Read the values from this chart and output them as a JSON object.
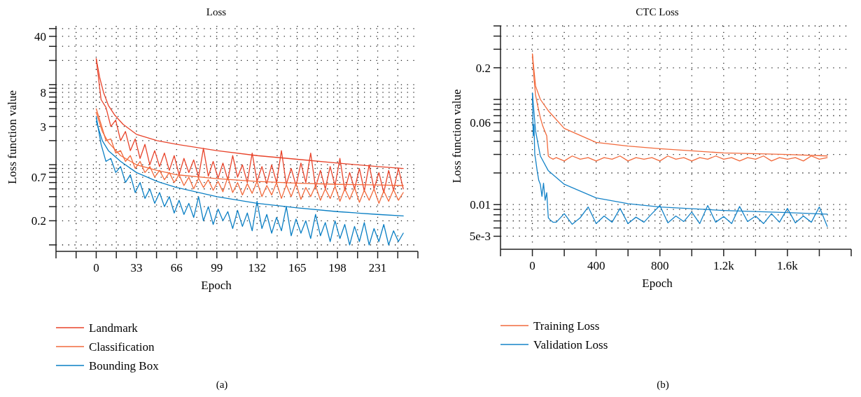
{
  "chart_data": [
    {
      "type": "line",
      "title": "Loss",
      "xlabel": "Epoch",
      "ylabel": "Loss function value",
      "log": "y",
      "grid": true,
      "legend": "bottom",
      "xlim": [
        -33,
        264
      ],
      "xticks": [
        {
          "value": -16.5,
          "label": null
        },
        0,
        {
          "value": 16.5,
          "label": null
        },
        33,
        {
          "value": 49.5,
          "label": null
        },
        66,
        {
          "value": 82.5,
          "label": null
        },
        99,
        {
          "value": 115.5,
          "label": null
        },
        132,
        {
          "value": 148.5,
          "label": null
        },
        165,
        {
          "value": 181.5,
          "label": null
        },
        198,
        {
          "value": 214.5,
          "label": null
        },
        231,
        {
          "value": 247.5,
          "label": null
        }
      ],
      "ylim": [
        0.09,
        54
      ],
      "yticks": [
        {
          "value": 50,
          "label": null
        },
        40,
        {
          "value": 30,
          "label": null
        },
        {
          "value": 20,
          "label": null
        },
        {
          "value": 10,
          "label": null
        },
        {
          "value": 9,
          "label": null
        },
        8,
        {
          "value": 7,
          "label": null
        },
        {
          "value": 6,
          "label": null
        },
        {
          "value": 5,
          "label": null
        },
        {
          "value": 4,
          "label": null
        },
        3,
        {
          "value": 2,
          "label": null
        },
        {
          "value": 1,
          "label": null
        },
        {
          "value": 0.9,
          "label": null
        },
        {
          "value": 0.8,
          "label": null
        },
        0.7,
        {
          "value": 0.6,
          "label": null
        },
        {
          "value": 0.5,
          "label": null
        },
        {
          "value": 0.4,
          "label": null
        },
        {
          "value": 0.3,
          "label": null
        },
        0.2,
        {
          "value": 0.1,
          "label": null
        }
      ],
      "annotations": [
        "(a)"
      ],
      "series": [
        {
          "name": "Landmark",
          "color": "#e8432a",
          "x": [
            0,
            4,
            8,
            12,
            16,
            20,
            24,
            28,
            32,
            36,
            40,
            44,
            48,
            52,
            56,
            60,
            64,
            68,
            72,
            76,
            80,
            84,
            88,
            92,
            96,
            100,
            104,
            108,
            112,
            116,
            120,
            124,
            128,
            132,
            136,
            140,
            144,
            148,
            152,
            156,
            160,
            164,
            168,
            172,
            176,
            180,
            184,
            188,
            192,
            196,
            200,
            204,
            208,
            212,
            216,
            220,
            224,
            228,
            232,
            236,
            240,
            244,
            248,
            252
          ],
          "values": [
            21,
            6.5,
            5.2,
            3.0,
            3.6,
            2.0,
            2.6,
            1.5,
            2.1,
            1.2,
            1.8,
            1.0,
            1.5,
            0.95,
            1.4,
            0.85,
            1.3,
            0.75,
            1.2,
            0.8,
            1.15,
            0.7,
            1.6,
            0.72,
            1.1,
            0.68,
            1.05,
            0.65,
            1.3,
            0.7,
            1.0,
            0.6,
            1.4,
            0.62,
            0.95,
            0.58,
            1.0,
            0.6,
            1.5,
            0.57,
            0.9,
            0.55,
            1.05,
            0.6,
            1.4,
            0.52,
            0.85,
            0.5,
            0.95,
            0.55,
            1.2,
            0.48,
            0.8,
            0.5,
            0.9,
            0.47,
            1.0,
            0.5,
            0.8,
            0.45,
            0.85,
            0.48,
            0.9,
            0.5
          ]
        },
        {
          "name": "Classification",
          "color": "#f26a3c",
          "x": [
            0,
            4,
            8,
            12,
            16,
            20,
            24,
            28,
            32,
            36,
            40,
            44,
            48,
            52,
            56,
            60,
            64,
            68,
            72,
            76,
            80,
            84,
            88,
            92,
            96,
            100,
            104,
            108,
            112,
            116,
            120,
            124,
            128,
            132,
            136,
            140,
            144,
            148,
            152,
            156,
            160,
            164,
            168,
            172,
            176,
            180,
            184,
            188,
            192,
            196,
            200,
            204,
            208,
            212,
            216,
            220,
            224,
            228,
            232,
            236,
            240,
            244,
            248,
            252
          ],
          "values": [
            5,
            3.2,
            2.0,
            2.1,
            1.4,
            1.5,
            1.1,
            1.3,
            0.9,
            1.1,
            0.8,
            0.95,
            0.7,
            0.85,
            0.65,
            0.8,
            0.6,
            0.75,
            0.55,
            0.7,
            0.5,
            0.68,
            0.52,
            0.65,
            0.48,
            0.62,
            0.46,
            0.7,
            0.45,
            0.6,
            0.42,
            0.58,
            0.44,
            0.62,
            0.4,
            0.55,
            0.42,
            0.6,
            0.38,
            0.56,
            0.4,
            0.58,
            0.37,
            0.52,
            0.4,
            0.55,
            0.36,
            0.5,
            0.38,
            0.54,
            0.35,
            0.5,
            0.37,
            0.52,
            0.34,
            0.48,
            0.36,
            0.5,
            0.33,
            0.47,
            0.35,
            0.49,
            0.36,
            0.45
          ]
        },
        {
          "name": "Bounding Box",
          "color": "#0a7fc4",
          "x": [
            0,
            4,
            8,
            12,
            16,
            20,
            24,
            28,
            32,
            36,
            40,
            44,
            48,
            52,
            56,
            60,
            64,
            68,
            72,
            76,
            80,
            84,
            88,
            92,
            96,
            100,
            104,
            108,
            112,
            116,
            120,
            124,
            128,
            132,
            136,
            140,
            144,
            148,
            152,
            156,
            160,
            164,
            168,
            172,
            176,
            180,
            184,
            188,
            192,
            196,
            200,
            204,
            208,
            212,
            216,
            220,
            224,
            228,
            232,
            236,
            240,
            244,
            248,
            252
          ],
          "values": [
            4,
            1.8,
            1.1,
            1.2,
            0.8,
            0.95,
            0.6,
            0.75,
            0.45,
            0.6,
            0.38,
            0.5,
            0.33,
            0.45,
            0.3,
            0.4,
            0.25,
            0.36,
            0.24,
            0.33,
            0.22,
            0.4,
            0.2,
            0.3,
            0.18,
            0.28,
            0.2,
            0.26,
            0.16,
            0.27,
            0.17,
            0.25,
            0.15,
            0.35,
            0.16,
            0.24,
            0.14,
            0.22,
            0.15,
            0.3,
            0.13,
            0.21,
            0.14,
            0.2,
            0.12,
            0.24,
            0.13,
            0.19,
            0.11,
            0.2,
            0.12,
            0.18,
            0.1,
            0.17,
            0.11,
            0.19,
            0.1,
            0.16,
            0.11,
            0.18,
            0.1,
            0.15,
            0.11,
            0.14
          ]
        },
        {
          "color": "#e8432a",
          "x": [
            0,
            3,
            6,
            10,
            15,
            22,
            33,
            50,
            66,
            99,
            132,
            165,
            198,
            231,
            252
          ],
          "values": [
            21,
            12,
            8,
            5.5,
            4.2,
            3.2,
            2.4,
            2.0,
            1.8,
            1.5,
            1.3,
            1.17,
            1.05,
            0.95,
            0.9
          ]
        },
        {
          "color": "#f26a3c",
          "x": [
            0,
            5,
            10,
            20,
            33,
            50,
            66,
            99,
            132,
            165,
            198,
            231,
            252
          ],
          "values": [
            4.5,
            2.6,
            1.9,
            1.3,
            1.0,
            0.85,
            0.75,
            0.67,
            0.62,
            0.59,
            0.57,
            0.56,
            0.55
          ]
        },
        {
          "color": "#0a7fc4",
          "x": [
            0,
            5,
            10,
            20,
            33,
            50,
            66,
            99,
            132,
            165,
            198,
            231,
            252
          ],
          "values": [
            3.5,
            2.0,
            1.5,
            1.1,
            0.8,
            0.62,
            0.52,
            0.4,
            0.33,
            0.29,
            0.26,
            0.24,
            0.23
          ]
        }
      ]
    },
    {
      "type": "line",
      "title": "CTC Loss",
      "xlabel": "Epoch",
      "ylabel": "Loss function value",
      "log": "y",
      "grid": true,
      "legend": "bottom",
      "xlim": [
        -200,
        2000
      ],
      "xticks": [
        0,
        {
          "value": 200,
          "label": null
        },
        400,
        {
          "value": 600,
          "label": null
        },
        800,
        {
          "value": 1000,
          "label": null
        },
        {
          "value": 1200,
          "label": "1.2k"
        },
        {
          "value": 1400,
          "label": null
        },
        {
          "value": 1600,
          "label": "1.6k"
        },
        {
          "value": 1800,
          "label": null
        }
      ],
      "ylim": [
        0.004,
        0.5
      ],
      "yticks": [
        {
          "value": 0.5,
          "label": null
        },
        {
          "value": 0.4,
          "label": null
        },
        {
          "value": 0.3,
          "label": null
        },
        0.2,
        {
          "value": 0.1,
          "label": null
        },
        {
          "value": 0.09,
          "label": null
        },
        {
          "value": 0.08,
          "label": null
        },
        {
          "value": 0.07,
          "label": null
        },
        0.06,
        {
          "value": 0.05,
          "label": null
        },
        {
          "value": 0.04,
          "label": null
        },
        {
          "value": 0.03,
          "label": null
        },
        {
          "value": 0.02,
          "label": null
        },
        0.01,
        {
          "value": 0.009,
          "label": null
        },
        {
          "value": 0.008,
          "label": null
        },
        {
          "value": 0.007,
          "label": null
        },
        {
          "value": 0.006,
          "label": null
        },
        {
          "value": 0.005,
          "label": "5e-3"
        }
      ],
      "annotations": [
        "(b)"
      ],
      "series": [
        {
          "name": "Training Loss",
          "color": "#f26a3c",
          "x": [
            0,
            10,
            20,
            35,
            50,
            65,
            80,
            90,
            100,
            110,
            130,
            150,
            200,
            250,
            300,
            350,
            400,
            450,
            500,
            550,
            600,
            650,
            700,
            750,
            800,
            850,
            900,
            950,
            1000,
            1050,
            1100,
            1150,
            1200,
            1250,
            1300,
            1350,
            1400,
            1450,
            1500,
            1550,
            1600,
            1650,
            1700,
            1750,
            1800,
            1850
          ],
          "values": [
            0.27,
            0.16,
            0.11,
            0.085,
            0.067,
            0.056,
            0.049,
            0.045,
            0.029,
            0.028,
            0.027,
            0.028,
            0.026,
            0.029,
            0.027,
            0.028,
            0.026,
            0.028,
            0.027,
            0.029,
            0.026,
            0.028,
            0.027,
            0.028,
            0.026,
            0.029,
            0.027,
            0.028,
            0.026,
            0.028,
            0.027,
            0.029,
            0.027,
            0.028,
            0.026,
            0.028,
            0.027,
            0.029,
            0.026,
            0.028,
            0.027,
            0.028,
            0.026,
            0.029,
            0.027,
            0.028
          ]
        },
        {
          "name": "Validation Loss",
          "color": "#1583c8",
          "x": [
            0,
            5,
            10,
            15,
            20,
            30,
            40,
            50,
            60,
            70,
            80,
            90,
            100,
            110,
            130,
            150,
            200,
            250,
            300,
            350,
            400,
            450,
            500,
            550,
            600,
            650,
            700,
            750,
            800,
            850,
            900,
            950,
            1000,
            1050,
            1100,
            1150,
            1200,
            1250,
            1300,
            1350,
            1400,
            1450,
            1500,
            1550,
            1600,
            1650,
            1700,
            1750,
            1800,
            1850
          ],
          "values": [
            0.115,
            0.045,
            0.058,
            0.03,
            0.027,
            0.021,
            0.017,
            0.0156,
            0.012,
            0.016,
            0.011,
            0.013,
            0.0075,
            0.0072,
            0.0068,
            0.0068,
            0.0082,
            0.0065,
            0.0075,
            0.0095,
            0.0066,
            0.0078,
            0.0068,
            0.0092,
            0.0066,
            0.0076,
            0.0068,
            0.0082,
            0.0098,
            0.0067,
            0.0078,
            0.0069,
            0.0085,
            0.0066,
            0.0098,
            0.0068,
            0.0077,
            0.0066,
            0.0096,
            0.0069,
            0.0078,
            0.0066,
            0.0082,
            0.0068,
            0.0092,
            0.0067,
            0.0078,
            0.0068,
            0.0095,
            0.0062
          ]
        },
        {
          "color": "#f26a3c",
          "x": [
            0,
            20,
            50,
            100,
            200,
            400,
            600,
            800,
            1200,
            1600,
            1850
          ],
          "values": [
            0.27,
            0.134,
            0.1,
            0.078,
            0.053,
            0.039,
            0.036,
            0.034,
            0.031,
            0.03,
            0.029
          ]
        },
        {
          "color": "#1583c8",
          "x": [
            0,
            20,
            50,
            100,
            200,
            400,
            600,
            800,
            1200,
            1600,
            1850
          ],
          "values": [
            0.115,
            0.05,
            0.029,
            0.021,
            0.0156,
            0.0116,
            0.0102,
            0.0095,
            0.0088,
            0.0084,
            0.0081
          ]
        }
      ]
    }
  ]
}
